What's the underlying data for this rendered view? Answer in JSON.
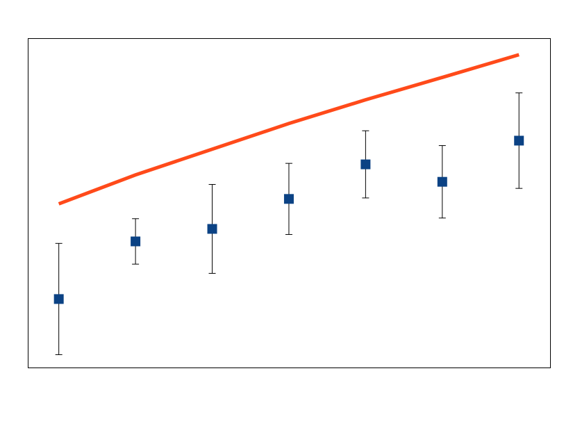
{
  "chart_data": {
    "type": "errorbar",
    "x": [
      1,
      2,
      3,
      4,
      5,
      6,
      7
    ],
    "xlim": [
      0.6,
      7.41
    ],
    "ylim": [
      0,
      100
    ],
    "series": [
      {
        "type": "line",
        "color": "#ff4a1a",
        "values": [
          49.8,
          58.6,
          66.4,
          74.2,
          81.4,
          88.2,
          95.1
        ]
      },
      {
        "type": "errorbar",
        "color": "#0b4284",
        "marker": "square",
        "values": [
          20.9,
          38.4,
          42.2,
          51.3,
          61.8,
          56.5,
          69.0
        ],
        "errors": [
          16.9,
          6.9,
          13.5,
          10.8,
          10.2,
          11.0,
          14.5
        ]
      }
    ]
  }
}
